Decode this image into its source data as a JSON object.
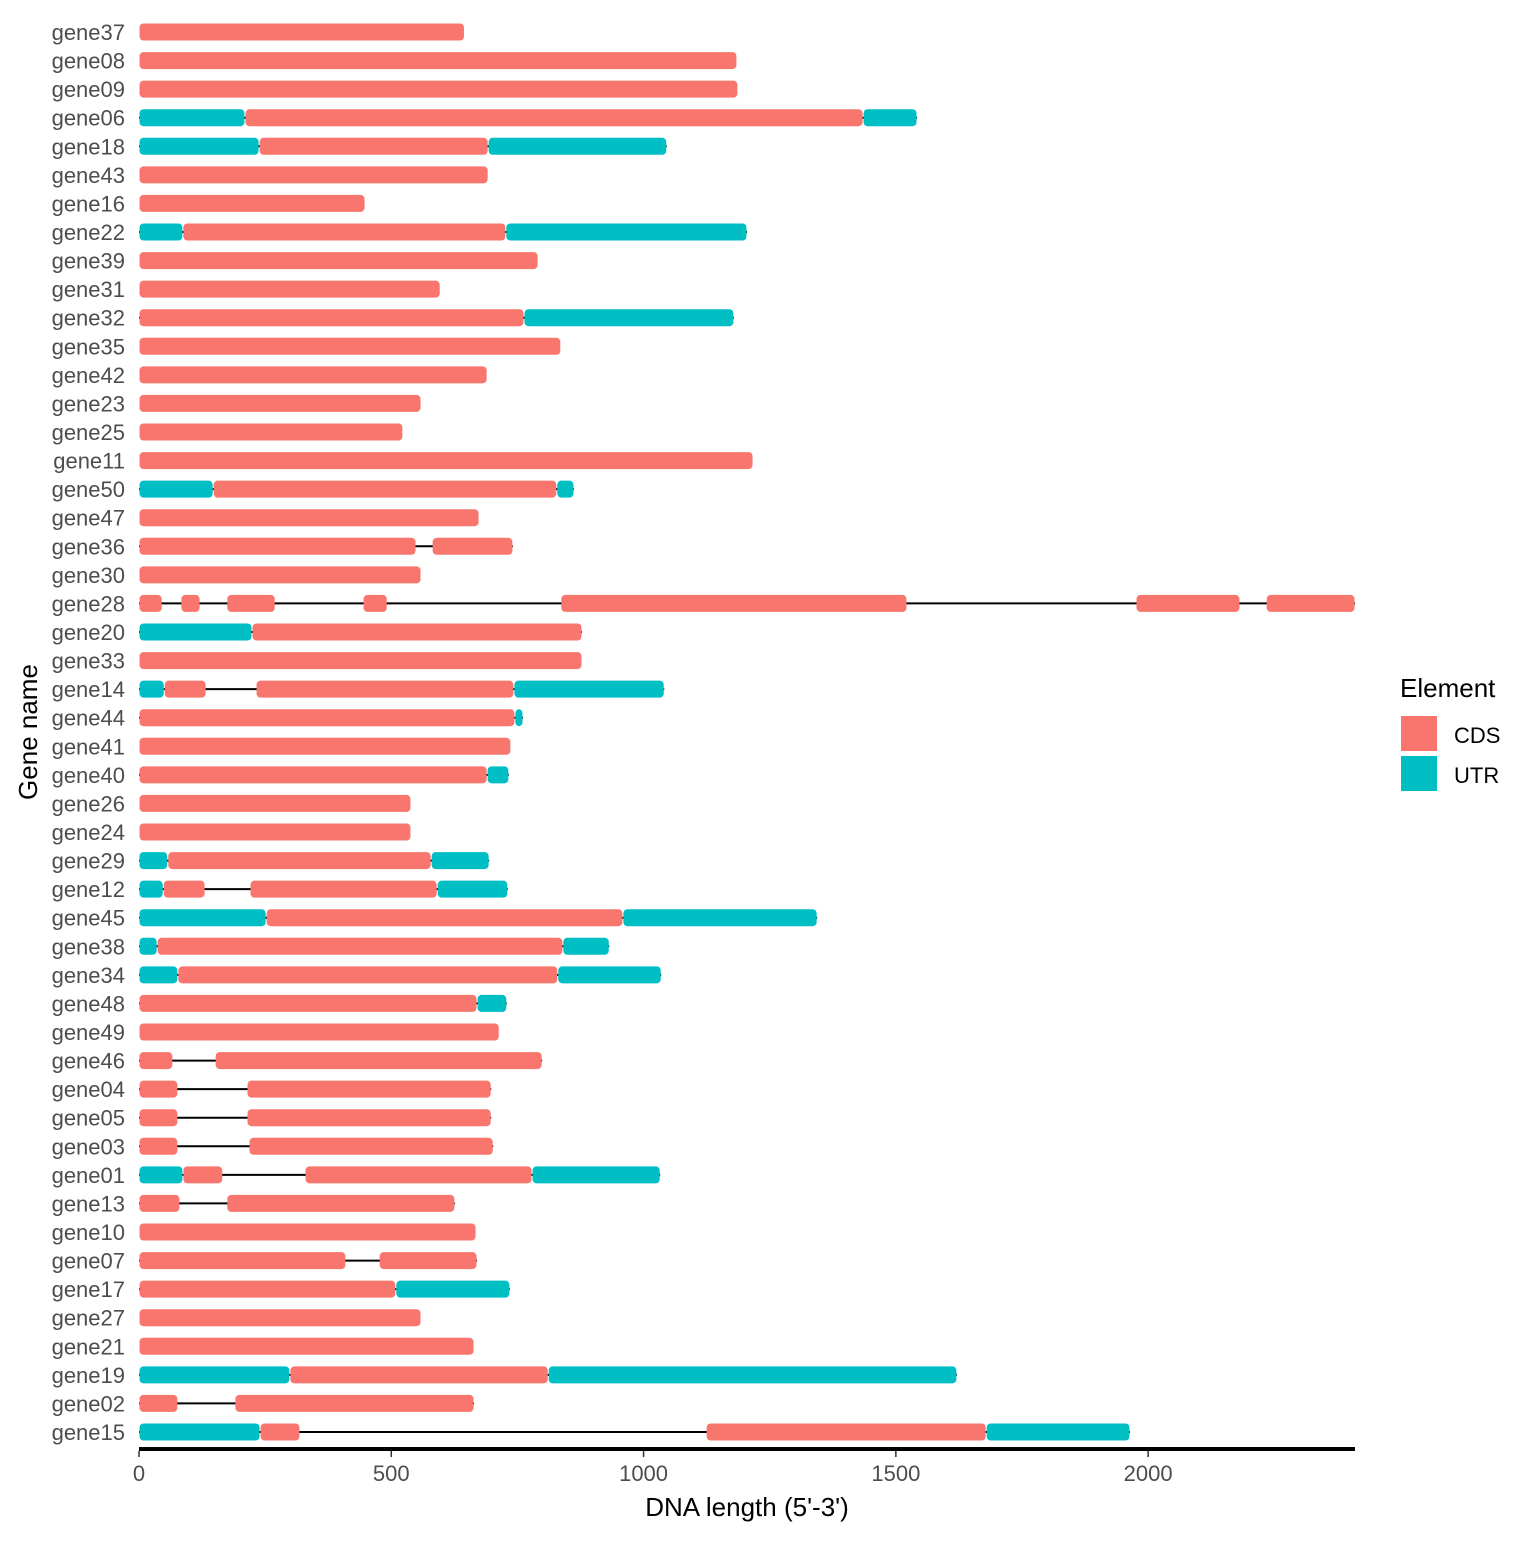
{
  "chart_data": {
    "type": "bar",
    "subtype": "gene-structure",
    "xlabel": "DNA length (5'-3')",
    "ylabel": "Gene name",
    "xlim": [
      0,
      2410
    ],
    "xticks": [
      0,
      500,
      1000,
      1500,
      2000
    ],
    "grid": false,
    "legend": {
      "title": "Element",
      "position": "right",
      "entries": [
        {
          "name": "CDS",
          "color": "#F8766D"
        },
        {
          "name": "UTR",
          "color": "#00BFC4"
        }
      ]
    },
    "genes": [
      {
        "name": "gene37",
        "segments": [
          [
            "CDS",
            0,
            645
          ]
        ]
      },
      {
        "name": "gene08",
        "segments": [
          [
            "CDS",
            0,
            1185
          ]
        ]
      },
      {
        "name": "gene09",
        "segments": [
          [
            "CDS",
            0,
            1187
          ]
        ]
      },
      {
        "name": "gene06",
        "segments": [
          [
            "UTR",
            0,
            210
          ],
          [
            "CDS",
            210,
            1435
          ],
          [
            "UTR",
            1435,
            1542
          ]
        ]
      },
      {
        "name": "gene18",
        "segments": [
          [
            "UTR",
            0,
            238
          ],
          [
            "CDS",
            238,
            692
          ],
          [
            "UTR",
            692,
            1046
          ]
        ]
      },
      {
        "name": "gene43",
        "segments": [
          [
            "CDS",
            0,
            692
          ]
        ]
      },
      {
        "name": "gene16",
        "segments": [
          [
            "CDS",
            0,
            448
          ]
        ]
      },
      {
        "name": "gene22",
        "segments": [
          [
            "UTR",
            0,
            87
          ],
          [
            "CDS",
            87,
            727
          ],
          [
            "UTR",
            727,
            1205
          ]
        ]
      },
      {
        "name": "gene39",
        "segments": [
          [
            "CDS",
            0,
            791
          ]
        ]
      },
      {
        "name": "gene31",
        "segments": [
          [
            "CDS",
            0,
            597
          ]
        ]
      },
      {
        "name": "gene32",
        "segments": [
          [
            "CDS",
            0,
            763
          ],
          [
            "UTR",
            763,
            1179
          ]
        ]
      },
      {
        "name": "gene35",
        "segments": [
          [
            "CDS",
            0,
            836
          ]
        ]
      },
      {
        "name": "gene42",
        "segments": [
          [
            "CDS",
            0,
            690
          ]
        ]
      },
      {
        "name": "gene23",
        "segments": [
          [
            "CDS",
            0,
            559
          ]
        ]
      },
      {
        "name": "gene25",
        "segments": [
          [
            "CDS",
            0,
            523
          ]
        ]
      },
      {
        "name": "gene11",
        "segments": [
          [
            "CDS",
            0,
            1217
          ]
        ]
      },
      {
        "name": "gene50",
        "segments": [
          [
            "UTR",
            0,
            147
          ],
          [
            "CDS",
            147,
            828
          ],
          [
            "UTR",
            828,
            862
          ]
        ]
      },
      {
        "name": "gene47",
        "segments": [
          [
            "CDS",
            0,
            674
          ]
        ]
      },
      {
        "name": "gene36",
        "segments": [
          [
            "CDS",
            0,
            549
          ],
          [
            "CDS",
            581,
            741
          ]
        ]
      },
      {
        "name": "gene30",
        "segments": [
          [
            "CDS",
            0,
            559
          ]
        ]
      },
      {
        "name": "gene28",
        "segments": [
          [
            "CDS",
            0,
            46
          ],
          [
            "CDS",
            83,
            121
          ],
          [
            "CDS",
            174,
            270
          ],
          [
            "CDS",
            444,
            492
          ],
          [
            "CDS",
            836,
            1522
          ],
          [
            "CDS",
            1976,
            2182
          ],
          [
            "CDS",
            2234,
            2410
          ]
        ]
      },
      {
        "name": "gene20",
        "segments": [
          [
            "UTR",
            0,
            224
          ],
          [
            "CDS",
            224,
            878
          ]
        ]
      },
      {
        "name": "gene33",
        "segments": [
          [
            "CDS",
            0,
            878
          ]
        ]
      },
      {
        "name": "gene14",
        "segments": [
          [
            "UTR",
            0,
            50
          ],
          [
            "CDS",
            50,
            133
          ],
          [
            "CDS",
            232,
            743
          ],
          [
            "UTR",
            743,
            1041
          ]
        ]
      },
      {
        "name": "gene44",
        "segments": [
          [
            "CDS",
            0,
            745
          ],
          [
            "UTR",
            745,
            761
          ]
        ]
      },
      {
        "name": "gene41",
        "segments": [
          [
            "CDS",
            0,
            737
          ]
        ]
      },
      {
        "name": "gene40",
        "segments": [
          [
            "CDS",
            0,
            690
          ],
          [
            "UTR",
            690,
            733
          ]
        ]
      },
      {
        "name": "gene26",
        "segments": [
          [
            "CDS",
            0,
            539
          ]
        ]
      },
      {
        "name": "gene24",
        "segments": [
          [
            "CDS",
            0,
            539
          ]
        ]
      },
      {
        "name": "gene29",
        "segments": [
          [
            "UTR",
            0,
            57
          ],
          [
            "CDS",
            57,
            579
          ],
          [
            "UTR",
            579,
            694
          ]
        ]
      },
      {
        "name": "gene12",
        "segments": [
          [
            "UTR",
            0,
            48
          ],
          [
            "CDS",
            48,
            131
          ],
          [
            "CDS",
            220,
            591
          ],
          [
            "UTR",
            591,
            731
          ]
        ]
      },
      {
        "name": "gene45",
        "segments": [
          [
            "UTR",
            0,
            252
          ],
          [
            "CDS",
            252,
            959
          ],
          [
            "UTR",
            959,
            1344
          ]
        ]
      },
      {
        "name": "gene38",
        "segments": [
          [
            "UTR",
            0,
            36
          ],
          [
            "CDS",
            36,
            840
          ],
          [
            "UTR",
            840,
            932
          ]
        ]
      },
      {
        "name": "gene34",
        "segments": [
          [
            "UTR",
            0,
            77
          ],
          [
            "CDS",
            77,
            830
          ],
          [
            "UTR",
            830,
            1035
          ]
        ]
      },
      {
        "name": "gene48",
        "segments": [
          [
            "CDS",
            0,
            670
          ],
          [
            "UTR",
            670,
            729
          ]
        ]
      },
      {
        "name": "gene49",
        "segments": [
          [
            "CDS",
            0,
            714
          ]
        ]
      },
      {
        "name": "gene46",
        "segments": [
          [
            "CDS",
            0,
            67
          ],
          [
            "CDS",
            151,
            799
          ]
        ]
      },
      {
        "name": "gene04",
        "segments": [
          [
            "CDS",
            0,
            77
          ],
          [
            "CDS",
            214,
            698
          ]
        ]
      },
      {
        "name": "gene05",
        "segments": [
          [
            "CDS",
            0,
            77
          ],
          [
            "CDS",
            214,
            698
          ]
        ]
      },
      {
        "name": "gene03",
        "segments": [
          [
            "CDS",
            0,
            77
          ],
          [
            "CDS",
            218,
            702
          ]
        ]
      },
      {
        "name": "gene01",
        "segments": [
          [
            "UTR",
            0,
            87
          ],
          [
            "CDS",
            87,
            166
          ],
          [
            "CDS",
            329,
            779
          ],
          [
            "UTR",
            779,
            1033
          ]
        ]
      },
      {
        "name": "gene13",
        "segments": [
          [
            "CDS",
            0,
            81
          ],
          [
            "CDS",
            174,
            626
          ]
        ]
      },
      {
        "name": "gene10",
        "segments": [
          [
            "CDS",
            0,
            668
          ]
        ]
      },
      {
        "name": "gene07",
        "segments": [
          [
            "CDS",
            0,
            410
          ],
          [
            "CDS",
            476,
            670
          ]
        ]
      },
      {
        "name": "gene17",
        "segments": [
          [
            "CDS",
            0,
            509
          ],
          [
            "UTR",
            509,
            735
          ]
        ]
      },
      {
        "name": "gene27",
        "segments": [
          [
            "CDS",
            0,
            559
          ]
        ]
      },
      {
        "name": "gene21",
        "segments": [
          [
            "CDS",
            0,
            664
          ]
        ]
      },
      {
        "name": "gene19",
        "segments": [
          [
            "UTR",
            0,
            299
          ],
          [
            "CDS",
            299,
            811
          ],
          [
            "UTR",
            811,
            1621
          ]
        ]
      },
      {
        "name": "gene02",
        "segments": [
          [
            "CDS",
            0,
            77
          ],
          [
            "CDS",
            190,
            664
          ]
        ]
      },
      {
        "name": "gene15",
        "segments": [
          [
            "UTR",
            0,
            240
          ],
          [
            "CDS",
            240,
            319
          ],
          [
            "CDS",
            1124,
            1679
          ],
          [
            "UTR",
            1679,
            1964
          ]
        ]
      }
    ]
  }
}
